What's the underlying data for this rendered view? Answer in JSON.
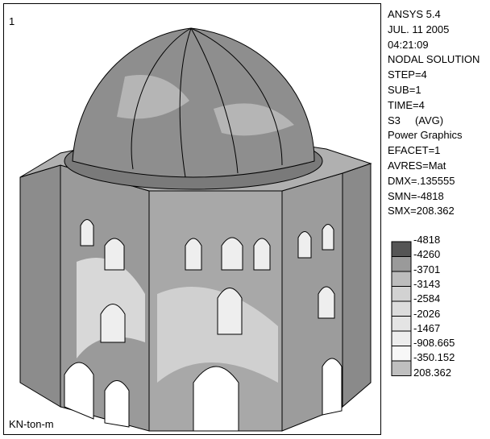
{
  "viewport": {
    "number": "1",
    "units": "KN-ton-m"
  },
  "info": [
    "ANSYS 5.4",
    "JUL. 11 2005",
    "04:21:09",
    "NODAL SOLUTION",
    "STEP=4",
    "SUB=1",
    "TIME=4",
    "S3     (AVG)",
    "Power Graphics",
    "EFACET=1",
    "AVRES=Mat",
    "DMX=.135555",
    "SMN=-4818",
    "SMX=208.362"
  ],
  "legend": [
    "-4818",
    "-4260",
    "-3701",
    "-3143",
    "-2584",
    "-2026",
    "-1467",
    "-908.665",
    "-350.152",
    "208.362"
  ]
}
